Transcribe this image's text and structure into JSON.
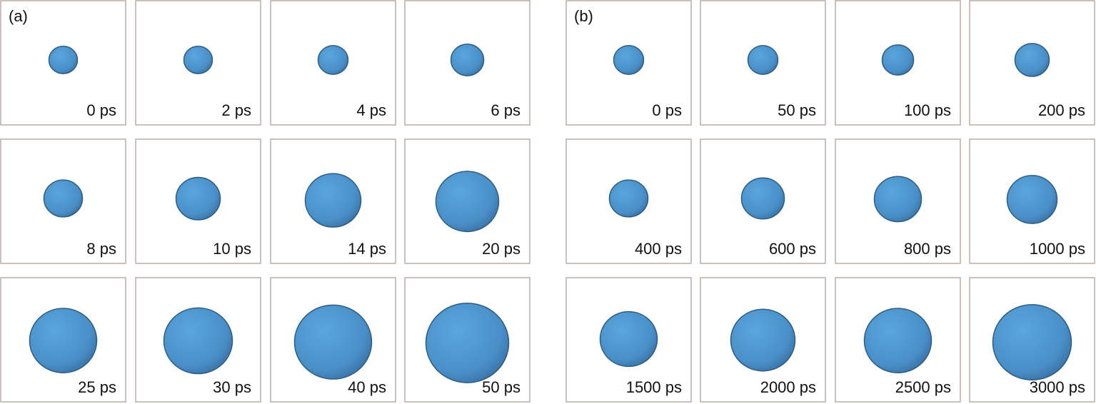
{
  "panels": [
    {
      "label": "(a)",
      "frames": [
        "0 ps",
        "2 ps",
        "4 ps",
        "6 ps",
        "8 ps",
        "10 ps",
        "14 ps",
        "20 ps",
        "25 ps",
        "30 ps",
        "40 ps",
        "50 ps"
      ]
    },
    {
      "label": "(b)",
      "frames": [
        "0 ps",
        "50 ps",
        "100 ps",
        "200 ps",
        "400 ps",
        "600 ps",
        "800 ps",
        "1000 ps",
        "1500 ps",
        "2000 ps",
        "2500 ps",
        "3000 ps"
      ]
    }
  ]
}
